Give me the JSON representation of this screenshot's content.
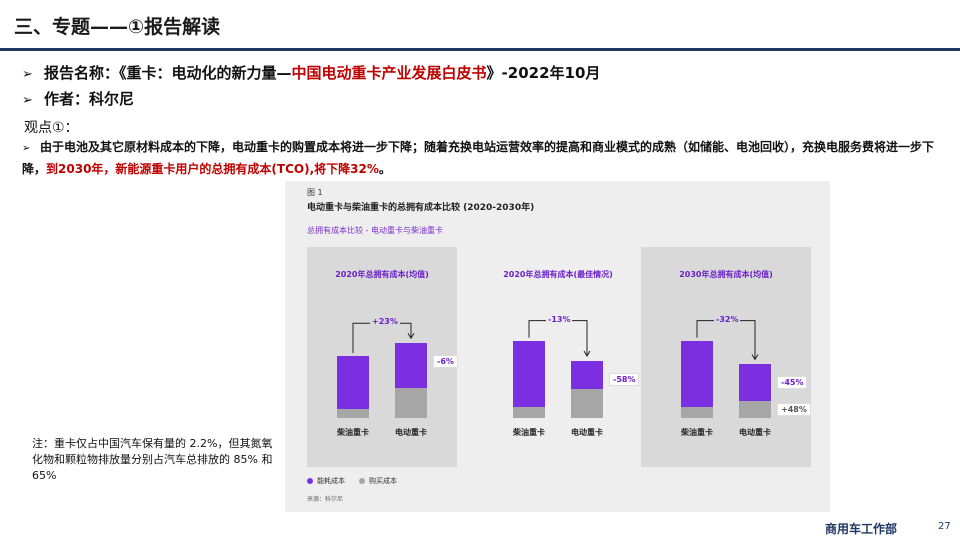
{
  "header": {
    "title": "三、专题——①报告解读"
  },
  "report": {
    "name_label": "报告名称：",
    "name_prefix": "《重卡：电动化的新力量—",
    "name_highlight": "中国电动重卡产业发展白皮书",
    "name_suffix": "》-2022年10月",
    "author_label": "作者：",
    "author": "科尔尼"
  },
  "viewpoint": {
    "title": "观点①：",
    "text": "由于电池及其它原材料成本的下降，电动重卡的购置成本将进一步下降；随着充换电站运营效率的提高和商业模式的成熟（如储能、电池回收），充换电服务费将进一步下降，",
    "highlight": "到2030年，新能源重卡用户的总拥有成本(TCO),将下降32%",
    "end": "。"
  },
  "figure": {
    "label": "图 1",
    "title": "电动重卡与柴油重卡的总拥有成本比较 (2020-2030年)",
    "subtitle": "总拥有成本比较 - 电动重卡与柴油重卡",
    "legend": [
      {
        "name": "能耗成本",
        "color": "#7b2fe0"
      },
      {
        "name": "购买成本",
        "color": "#a6a6a6"
      }
    ],
    "source": "来源：科尔尼"
  },
  "chart_data": [
    {
      "type": "bar",
      "title": "2020年总拥有成本(均值)",
      "categories": [
        "柴油重卡",
        "电动重卡"
      ],
      "series": [
        {
          "name": "购买成本",
          "values": [
            11,
            35
          ]
        },
        {
          "name": "能耗成本",
          "values": [
            62,
            53
          ]
        }
      ],
      "annotations": {
        "change": "+23%",
        "side": [
          "-6%"
        ]
      }
    },
    {
      "type": "bar",
      "title": "2020年总拥有成本(最佳情况)",
      "categories": [
        "柴油重卡",
        "电动重卡"
      ],
      "series": [
        {
          "name": "购买成本",
          "values": [
            13,
            34
          ]
        },
        {
          "name": "能耗成本",
          "values": [
            78,
            33
          ]
        }
      ],
      "annotations": {
        "change": "-13%",
        "side": [
          "-58%"
        ]
      }
    },
    {
      "type": "bar",
      "title": "2030年总拥有成本(均值)",
      "categories": [
        "柴油重卡",
        "电动重卡"
      ],
      "series": [
        {
          "name": "购买成本",
          "values": [
            13,
            20
          ]
        },
        {
          "name": "能耗成本",
          "values": [
            78,
            43
          ]
        }
      ],
      "annotations": {
        "change": "-32%",
        "side": [
          "-45%",
          "+48%"
        ]
      }
    }
  ],
  "note": "注：重卡仅占中国汽车保有量的  2.2%，但其氮氧化物和颗粒物排放量分别占汽车总排放的  85% 和65%",
  "footer": {
    "brand": "商用车工作部",
    "page": "27"
  }
}
